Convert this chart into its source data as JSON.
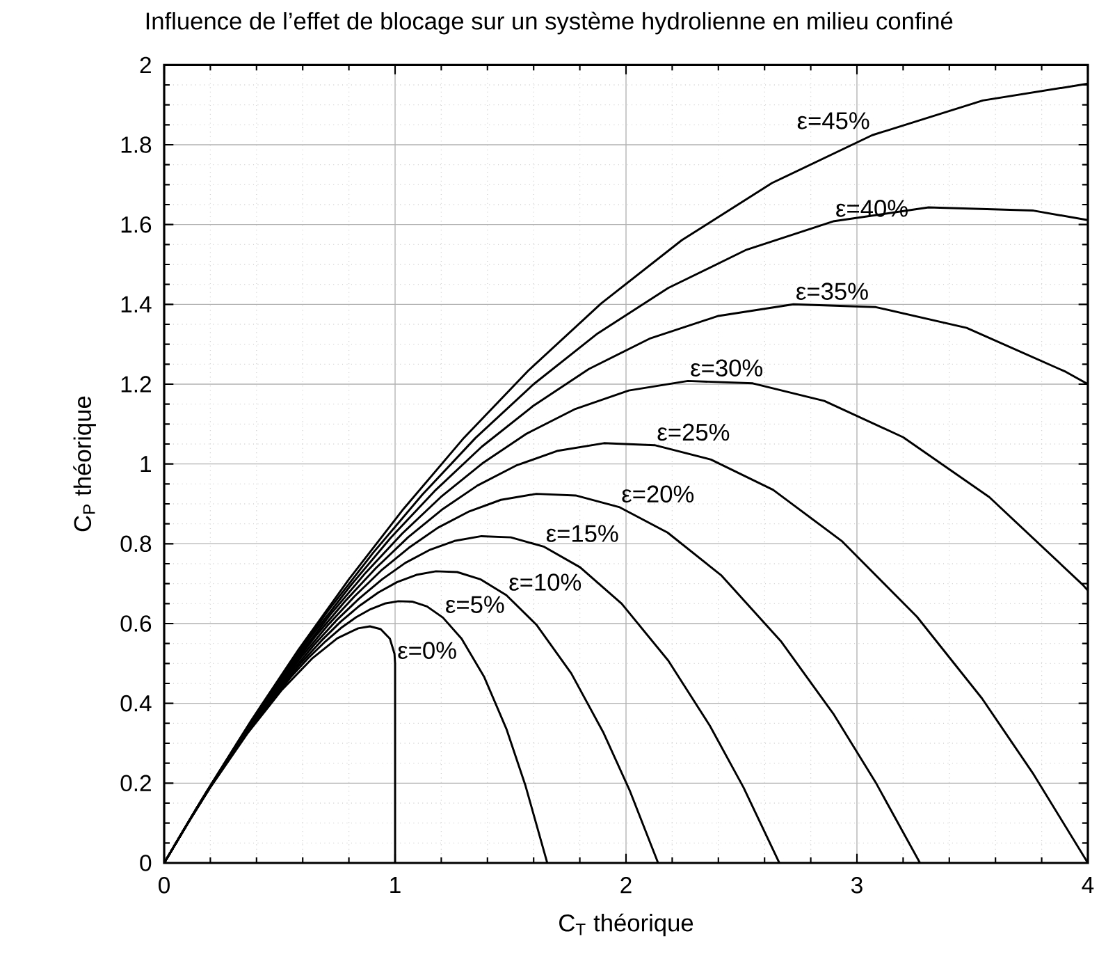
{
  "chart_data": {
    "type": "line",
    "title": "Influence de l’effet de blocage sur un système hydrolienne en milieu confiné",
    "xlabel": "C$_{T}$ théorique",
    "ylabel": "C$_{P}$ théorique",
    "xlim": [
      0,
      4
    ],
    "ylim": [
      0,
      2
    ],
    "xticks": [
      0,
      1,
      2,
      3,
      4
    ],
    "yticks": [
      0,
      0.2,
      0.4,
      0.6,
      0.8,
      1,
      1.2,
      1.4,
      1.6,
      1.8,
      2
    ],
    "grid": true,
    "series": [
      {
        "color": "#000000",
        "x": [
          0,
          0.0975,
          0.19,
          0.36,
          0.51,
          0.64,
          0.75,
          0.84,
          0.891,
          0.9375,
          0.9775,
          0.9975,
          1,
          1
        ],
        "values": [
          0,
          0.095,
          0.181,
          0.324,
          0.434,
          0.512,
          0.563,
          0.588,
          0.593,
          0.586,
          0.562,
          0.524,
          0.5,
          0
        ]
      },
      {
        "color": "#000000",
        "x": [
          0,
          0.103,
          0.201,
          0.295,
          0.384,
          0.469,
          0.549,
          0.625,
          0.698,
          0.766,
          0.832,
          0.894,
          0.955,
          1.014,
          1.074,
          1.138,
          1.207,
          1.288,
          1.386,
          1.482,
          1.565,
          1.659
        ],
        "values": [
          0,
          0.1,
          0.191,
          0.273,
          0.345,
          0.409,
          0.466,
          0.514,
          0.555,
          0.589,
          0.616,
          0.636,
          0.65,
          0.656,
          0.655,
          0.643,
          0.615,
          0.562,
          0.466,
          0.336,
          0.193,
          0
        ]
      },
      {
        "color": "#000000",
        "x": [
          0,
          0.109,
          0.214,
          0.314,
          0.411,
          0.504,
          0.594,
          0.681,
          0.765,
          0.847,
          0.928,
          1.009,
          1.092,
          1.177,
          1.269,
          1.369,
          1.482,
          1.612,
          1.763,
          1.901,
          2.015,
          2.139
        ],
        "values": [
          0,
          0.106,
          0.203,
          0.291,
          0.369,
          0.44,
          0.502,
          0.557,
          0.605,
          0.645,
          0.678,
          0.704,
          0.722,
          0.731,
          0.729,
          0.711,
          0.671,
          0.597,
          0.475,
          0.328,
          0.183,
          0
        ]
      },
      {
        "color": "#000000",
        "x": [
          0,
          0.116,
          0.228,
          0.337,
          0.443,
          0.546,
          0.647,
          0.746,
          0.845,
          0.944,
          1.044,
          1.148,
          1.257,
          1.374,
          1.501,
          1.643,
          1.801,
          1.981,
          2.183,
          2.363,
          2.509,
          2.664
        ],
        "values": [
          0,
          0.113,
          0.216,
          0.311,
          0.397,
          0.475,
          0.545,
          0.608,
          0.663,
          0.711,
          0.752,
          0.784,
          0.807,
          0.819,
          0.816,
          0.793,
          0.741,
          0.65,
          0.507,
          0.344,
          0.189,
          0
        ]
      },
      {
        "color": "#000000",
        "x": [
          0,
          0.123,
          0.244,
          0.362,
          0.479,
          0.594,
          0.709,
          0.824,
          0.94,
          1.06,
          1.185,
          1.317,
          1.458,
          1.612,
          1.782,
          1.97,
          2.18,
          2.414,
          2.673,
          2.9,
          3.081,
          3.273
        ],
        "values": [
          0,
          0.12,
          0.232,
          0.335,
          0.429,
          0.516,
          0.596,
          0.668,
          0.733,
          0.79,
          0.84,
          0.88,
          0.91,
          0.925,
          0.921,
          0.892,
          0.828,
          0.72,
          0.554,
          0.372,
          0.202,
          0
        ]
      },
      {
        "color": "#000000",
        "x": [
          0,
          0.132,
          0.263,
          0.392,
          0.521,
          0.651,
          0.782,
          0.917,
          1.056,
          1.202,
          1.357,
          1.524,
          1.705,
          1.904,
          2.124,
          2.368,
          2.637,
          2.934,
          3.26,
          3.542,
          3.765,
          4
        ],
        "values": [
          0,
          0.129,
          0.249,
          0.362,
          0.467,
          0.565,
          0.655,
          0.739,
          0.816,
          0.885,
          0.946,
          0.996,
          1.033,
          1.052,
          1.047,
          1.011,
          0.935,
          0.807,
          0.617,
          0.412,
          0.222,
          0
        ]
      },
      {
        "color": "#000000",
        "x": [
          0,
          0.142,
          0.285,
          0.427,
          0.572,
          0.719,
          0.872,
          1.03,
          1.198,
          1.377,
          1.57,
          1.781,
          2.012,
          2.268,
          2.549,
          2.859,
          3.2,
          3.573,
          3.978,
          4
        ],
        "values": [
          0,
          0.139,
          0.27,
          0.394,
          0.511,
          0.622,
          0.727,
          0.825,
          0.917,
          1.001,
          1.076,
          1.138,
          1.184,
          1.208,
          1.202,
          1.158,
          1.067,
          0.917,
          0.697,
          0.683
        ]
      },
      {
        "color": "#000000",
        "x": [
          0,
          0.154,
          0.31,
          0.469,
          0.633,
          0.803,
          0.981,
          1.171,
          1.375,
          1.597,
          1.839,
          2.106,
          2.4,
          2.725,
          3.082,
          3.475,
          3.904,
          4
        ],
        "values": [
          0,
          0.15,
          0.294,
          0.432,
          0.565,
          0.692,
          0.815,
          0.932,
          1.043,
          1.145,
          1.238,
          1.315,
          1.371,
          1.4,
          1.393,
          1.341,
          1.231,
          1.2
        ]
      },
      {
        "color": "#000000",
        "x": [
          0,
          0.168,
          0.341,
          0.52,
          0.707,
          0.906,
          1.118,
          1.348,
          1.6,
          1.877,
          2.183,
          2.522,
          2.897,
          3.31,
          3.764,
          4
        ],
        "values": [
          0,
          0.164,
          0.323,
          0.478,
          0.63,
          0.778,
          0.923,
          1.065,
          1.2,
          1.327,
          1.441,
          1.537,
          1.608,
          1.643,
          1.635,
          1.611
        ]
      },
      {
        "color": "#000000",
        "x": [
          0,
          0.185,
          0.378,
          0.582,
          0.8,
          1.036,
          1.293,
          1.577,
          1.892,
          2.242,
          2.632,
          3.066,
          3.545,
          4
        ],
        "values": [
          0,
          0.18,
          0.358,
          0.535,
          0.711,
          0.887,
          1.062,
          1.234,
          1.402,
          1.561,
          1.704,
          1.824,
          1.911,
          1.953
        ]
      }
    ],
    "annotations": [
      {
        "text": "ε=0%",
        "x": 1,
        "y": 0.5
      },
      {
        "text": "ε=5%",
        "x": 1.207,
        "y": 0.615
      },
      {
        "text": "ε=10%",
        "x": 1.482,
        "y": 0.671
      },
      {
        "text": "ε=15%",
        "x": 1.643,
        "y": 0.793
      },
      {
        "text": "ε=20%",
        "x": 1.97,
        "y": 0.892
      },
      {
        "text": "ε=25%",
        "x": 2.124,
        "y": 1.047
      },
      {
        "text": "ε=30%",
        "x": 2.268,
        "y": 1.208
      },
      {
        "text": "ε=35%",
        "x": 2.725,
        "y": 1.4
      },
      {
        "text": "ε=40%",
        "x": 2.897,
        "y": 1.608
      },
      {
        "text": "ε=45%",
        "x": 3.066,
        "y": 1.824
      }
    ]
  }
}
